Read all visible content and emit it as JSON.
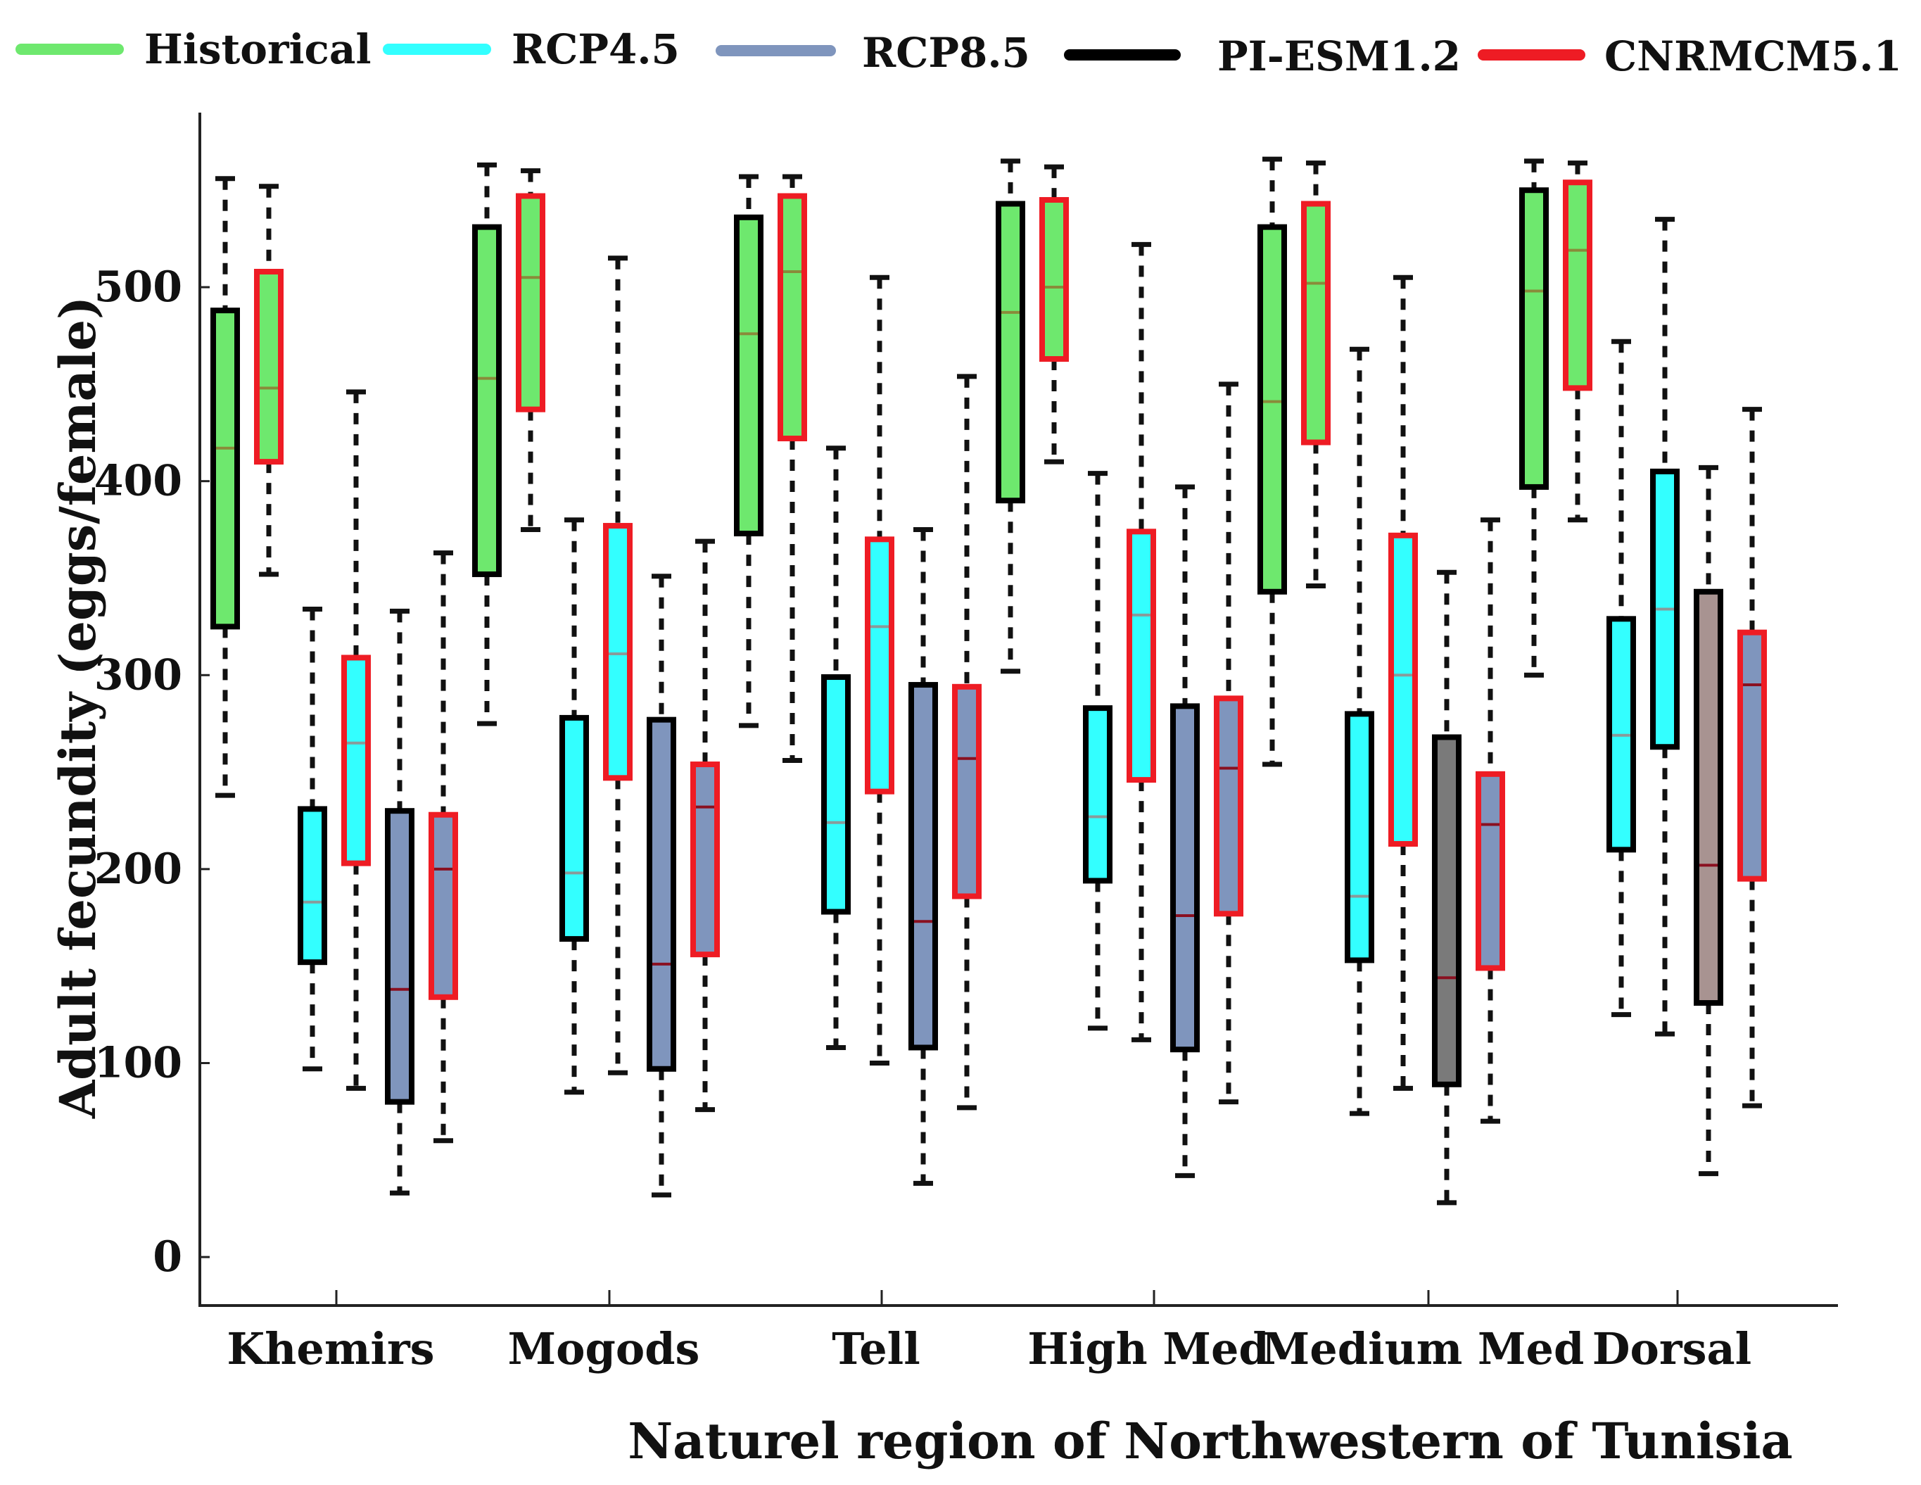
{
  "chart_data": {
    "type": "boxplot",
    "title": "",
    "xlabel": "Naturel region of Northwestern of Tunisia",
    "ylabel": "Adult fecundity (eggs/female)",
    "ylim": [
      -25,
      590
    ],
    "yticks": [
      0,
      100,
      200,
      300,
      400,
      500
    ],
    "grid": false,
    "legend_position": "top",
    "legend": [
      {
        "name": "Historical",
        "color": "#6ee86e"
      },
      {
        "name": "RCP4.5",
        "color": "#33ffff"
      },
      {
        "name": "RCP8.5",
        "color": "#7f95bd"
      },
      {
        "name": "PI-ESM1.2",
        "color": "#000000"
      },
      {
        "name": "CNRMCM5.1",
        "color": "#ee1c24"
      }
    ],
    "categories": [
      "Khemirs",
      "Mogods",
      "Tell",
      "High Med",
      "Medium Med",
      "Dorsal"
    ],
    "category_positions": [
      1.5,
      5.5,
      9.5,
      13.5,
      17.5,
      21.5
    ],
    "x_range": [
      -0.5,
      24.5
    ],
    "boxes": [
      {
        "pos": 0,
        "region": "Khemirs",
        "scenario": "Historical",
        "model": "PI-ESM1.2",
        "min": 238,
        "q1": 325,
        "median": 417,
        "q3": 488,
        "max": 556
      },
      {
        "pos": 1,
        "region": "Khemirs",
        "scenario": "Historical",
        "model": "CNRMCM5.1",
        "min": 352,
        "q1": 410,
        "median": 448,
        "q3": 508,
        "max": 552
      },
      {
        "pos": 2,
        "region": "Khemirs",
        "scenario": "RCP4.5",
        "model": "PI-ESM1.2",
        "min": 97,
        "q1": 152,
        "median": 183,
        "q3": 231,
        "max": 334
      },
      {
        "pos": 3,
        "region": "Khemirs",
        "scenario": "RCP4.5",
        "model": "CNRMCM5.1",
        "min": 87,
        "q1": 203,
        "median": 265,
        "q3": 309,
        "max": 446
      },
      {
        "pos": 4,
        "region": "Khemirs",
        "scenario": "RCP8.5",
        "model": "PI-ESM1.2",
        "min": 33,
        "q1": 80,
        "median": 138,
        "q3": 230,
        "max": 333
      },
      {
        "pos": 5,
        "region": "Khemirs",
        "scenario": "RCP8.5",
        "model": "CNRMCM5.1",
        "min": 60,
        "q1": 134,
        "median": 200,
        "q3": 228,
        "max": 363
      },
      {
        "pos": 6,
        "region": "Mogods",
        "scenario": "Historical",
        "model": "PI-ESM1.2",
        "min": 275,
        "q1": 352,
        "median": 453,
        "q3": 531,
        "max": 563
      },
      {
        "pos": 7,
        "region": "Mogods",
        "scenario": "Historical",
        "model": "CNRMCM5.1",
        "min": 375,
        "q1": 437,
        "median": 505,
        "q3": 547,
        "max": 560
      },
      {
        "pos": 8,
        "region": "Mogods",
        "scenario": "RCP4.5",
        "model": "PI-ESM1.2",
        "min": 85,
        "q1": 164,
        "median": 198,
        "q3": 278,
        "max": 380
      },
      {
        "pos": 9,
        "region": "Mogods",
        "scenario": "RCP4.5",
        "model": "CNRMCM5.1",
        "min": 95,
        "q1": 247,
        "median": 311,
        "q3": 377,
        "max": 515
      },
      {
        "pos": 10,
        "region": "Mogods",
        "scenario": "RCP8.5",
        "model": "PI-ESM1.2",
        "min": 32,
        "q1": 97,
        "median": 151,
        "q3": 277,
        "max": 351
      },
      {
        "pos": 11,
        "region": "Mogods",
        "scenario": "RCP8.5",
        "model": "CNRMCM5.1",
        "min": 76,
        "q1": 156,
        "median": 232,
        "q3": 254,
        "max": 369
      },
      {
        "pos": 12,
        "region": "Tell",
        "scenario": "Historical",
        "model": "PI-ESM1.2",
        "min": 274,
        "q1": 373,
        "median": 476,
        "q3": 536,
        "max": 557
      },
      {
        "pos": 13,
        "region": "Tell",
        "scenario": "Historical",
        "model": "CNRMCM5.1",
        "min": 256,
        "q1": 422,
        "median": 508,
        "q3": 547,
        "max": 557
      },
      {
        "pos": 14,
        "region": "Tell",
        "scenario": "RCP4.5",
        "model": "PI-ESM1.2",
        "min": 108,
        "q1": 178,
        "median": 224,
        "q3": 299,
        "max": 417
      },
      {
        "pos": 15,
        "region": "Tell",
        "scenario": "RCP4.5",
        "model": "CNRMCM5.1",
        "min": 100,
        "q1": 240,
        "median": 325,
        "q3": 370,
        "max": 505
      },
      {
        "pos": 16,
        "region": "Tell",
        "scenario": "RCP8.5",
        "model": "PI-ESM1.2",
        "min": 38,
        "q1": 108,
        "median": 173,
        "q3": 295,
        "max": 375
      },
      {
        "pos": 17,
        "region": "Tell",
        "scenario": "RCP8.5",
        "model": "CNRMCM5.1",
        "min": 77,
        "q1": 186,
        "median": 257,
        "q3": 294,
        "max": 454
      },
      {
        "pos": 18,
        "region": "High Med",
        "scenario": "Historical",
        "model": "PI-ESM1.2",
        "min": 302,
        "q1": 390,
        "median": 487,
        "q3": 543,
        "max": 565
      },
      {
        "pos": 19,
        "region": "High Med",
        "scenario": "Historical",
        "model": "CNRMCM5.1",
        "min": 410,
        "q1": 463,
        "median": 500,
        "q3": 545,
        "max": 562
      },
      {
        "pos": 20,
        "region": "High Med",
        "scenario": "RCP4.5",
        "model": "PI-ESM1.2",
        "min": 118,
        "q1": 194,
        "median": 227,
        "q3": 283,
        "max": 404
      },
      {
        "pos": 21,
        "region": "High Med",
        "scenario": "RCP4.5",
        "model": "CNRMCM5.1",
        "min": 112,
        "q1": 246,
        "median": 331,
        "q3": 374,
        "max": 522
      },
      {
        "pos": 22,
        "region": "High Med",
        "scenario": "RCP8.5",
        "model": "PI-ESM1.2",
        "min": 42,
        "q1": 107,
        "median": 176,
        "q3": 284,
        "max": 397
      },
      {
        "pos": 23,
        "region": "High Med",
        "scenario": "RCP8.5",
        "model": "CNRMCM5.1",
        "min": 80,
        "q1": 177,
        "median": 252,
        "q3": 288,
        "max": 450
      },
      {
        "pos": 24,
        "region": "Medium Med",
        "scenario": "Historical",
        "model": "PI-ESM1.2",
        "min": 254,
        "q1": 343,
        "median": 441,
        "q3": 531,
        "max": 566
      },
      {
        "pos": 25,
        "region": "Medium Med",
        "scenario": "Historical",
        "model": "CNRMCM5.1",
        "min": 346,
        "q1": 420,
        "median": 502,
        "q3": 543,
        "max": 564
      },
      {
        "pos": 26,
        "region": "Medium Med",
        "scenario": "RCP4.5",
        "model": "PI-ESM1.2",
        "min": 74,
        "q1": 153,
        "median": 186,
        "q3": 280,
        "max": 468
      },
      {
        "pos": 27,
        "region": "Medium Med",
        "scenario": "RCP4.5",
        "model": "CNRMCM5.1",
        "min": 87,
        "q1": 213,
        "median": 300,
        "q3": 372,
        "max": 505
      },
      {
        "pos": 28,
        "region": "Medium Med",
        "scenario": "RCP8.5",
        "model": "PI-ESM1.2",
        "min": 28,
        "q1": 89,
        "median": 144,
        "q3": 268,
        "max": 353
      },
      {
        "pos": 29,
        "region": "Medium Med",
        "scenario": "RCP8.5",
        "model": "CNRMCM5.1",
        "min": 70,
        "q1": 149,
        "median": 223,
        "q3": 249,
        "max": 380
      },
      {
        "pos": 30,
        "region": "Medium Med",
        "scenario": "Historical",
        "model": "PI-ESM1.2",
        "min": 300,
        "q1": 397,
        "median": 498,
        "q3": 550,
        "max": 565
      },
      {
        "pos": 31,
        "region": "Medium Med",
        "scenario": "Historical",
        "model": "CNRMCM5.1",
        "min": 380,
        "q1": 448,
        "median": 519,
        "q3": 554,
        "max": 564
      },
      {
        "pos": 32,
        "region": "Dorsal",
        "scenario": "RCP4.5",
        "model": "PI-ESM1.2",
        "min": 125,
        "q1": 210,
        "median": 269,
        "q3": 329,
        "max": 472
      },
      {
        "pos": 33,
        "region": "Dorsal",
        "scenario": "RCP4.5",
        "model": "PI-ESM1.2",
        "min": 115,
        "q1": 263,
        "median": 334,
        "q3": 405,
        "max": 535
      },
      {
        "pos": 34,
        "region": "Dorsal",
        "scenario": "RCP8.5",
        "model": "PI-ESM1.2",
        "min": 43,
        "q1": 131,
        "median": 202,
        "q3": 343,
        "max": 407
      },
      {
        "pos": 35,
        "region": "Dorsal",
        "scenario": "RCP8.5",
        "model": "CNRMCM5.1",
        "min": 78,
        "q1": 195,
        "median": 295,
        "q3": 322,
        "max": 437
      }
    ]
  }
}
